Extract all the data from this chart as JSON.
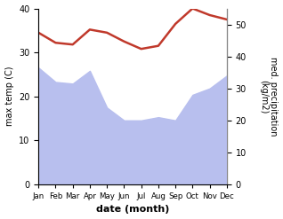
{
  "months": [
    "Jan",
    "Feb",
    "Mar",
    "Apr",
    "May",
    "Jun",
    "Jul",
    "Aug",
    "Sep",
    "Oct",
    "Nov",
    "Dec"
  ],
  "month_indices": [
    0,
    1,
    2,
    3,
    4,
    5,
    6,
    7,
    8,
    9,
    10,
    11
  ],
  "temp": [
    34.5,
    32.2,
    31.8,
    35.2,
    34.5,
    32.5,
    30.8,
    31.5,
    36.5,
    40.0,
    38.5,
    37.5
  ],
  "precip": [
    36.5,
    32.0,
    31.5,
    35.5,
    24.0,
    20.0,
    20.0,
    21.0,
    20.0,
    28.0,
    30.0,
    34.0
  ],
  "temp_color": "#c0392b",
  "precip_fill_color": "#b8bfee",
  "temp_ylim": [
    0,
    40
  ],
  "precip_ylim": [
    0,
    55
  ],
  "temp_yticks": [
    0,
    10,
    20,
    30,
    40
  ],
  "precip_yticks": [
    0,
    10,
    20,
    30,
    40,
    50
  ],
  "xlabel": "date (month)",
  "ylabel_left": "max temp (C)",
  "ylabel_right": "med. precipitation\n(kg/m2)",
  "bg_color": "#ffffff",
  "line_width": 1.8
}
